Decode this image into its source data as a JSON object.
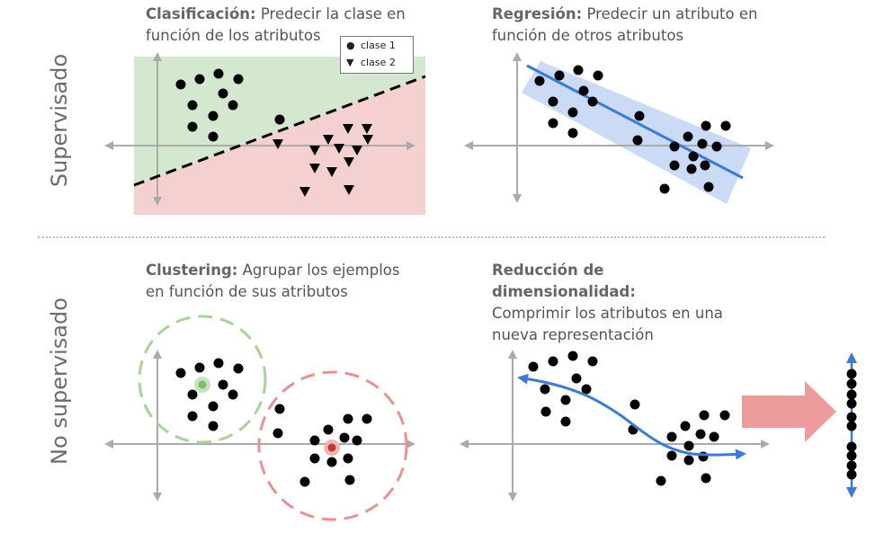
{
  "rows": {
    "supervised": "Supervisado",
    "unsupervised": "No supervisado"
  },
  "panels": {
    "classification": {
      "bold": "Clasificación:",
      "text": " Predecir la clase en función de los atributos"
    },
    "regression": {
      "bold": "Regresión:",
      "text": " Predecir un atributo en función de otros atributos"
    },
    "clustering": {
      "bold": "Clustering:",
      "text": " Agrupar los ejemplos en función de sus atributos"
    },
    "reduction": {
      "bold": "Reducción de dimensionalidad:",
      "text": "Comprimir los atributos en una nueva representación"
    }
  },
  "legend": {
    "class1": {
      "marker": "●",
      "label": "clase 1"
    },
    "class2": {
      "marker": "▼",
      "label": "clase 2"
    }
  },
  "colors": {
    "green_region": "#d4e8d0",
    "red_region": "#f4d0d0",
    "axis": "#aaaaaa",
    "blue": "#3a7bd5",
    "blue_band": "#b9cff3",
    "cluster_green": "#a9d39a",
    "cluster_red": "#e8928f",
    "arrow_red": "#ee9b9b"
  }
}
